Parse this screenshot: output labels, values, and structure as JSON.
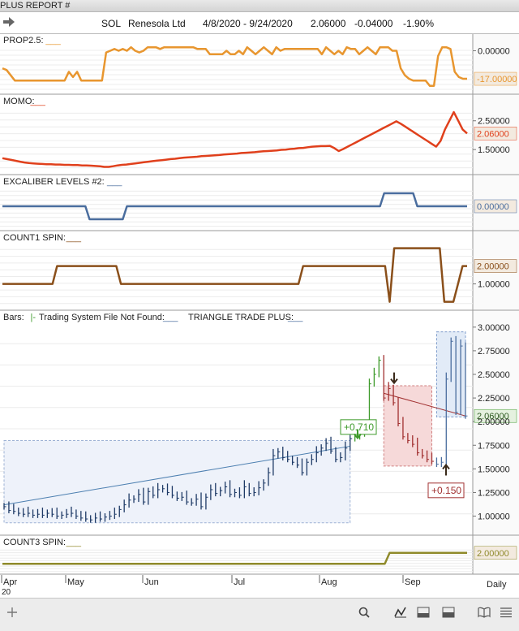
{
  "window": {
    "title": "PLUS REPORT #"
  },
  "header": {
    "symbol": "SOL",
    "name": "Renesola Ltd",
    "date_range": "4/8/2020 - 9/24/2020",
    "last": "2.06000",
    "change": "-0.04000",
    "change_pct": "-1.90%"
  },
  "colors": {
    "prop": "#e8962f",
    "momo": "#e0401c",
    "excal": "#4a6d9e",
    "count1": "#8a4f1a",
    "count3": "#8f8a2a",
    "up": "#3d9a2a",
    "down": "#a13030",
    "bars": "#1e3a66",
    "trend": "#4c7fb0"
  },
  "x_axis": {
    "months": [
      "Apr",
      "May",
      "Jun",
      "Jul",
      "Aug",
      "Sep"
    ],
    "year_label": "20",
    "period": "Daily"
  },
  "chart_data": [
    {
      "type": "line",
      "title": "PROP2.5:",
      "title_suffix": "___",
      "ticks": [
        "0.00000"
      ],
      "last_label": "-17.00000",
      "ylim": [
        -22,
        3
      ],
      "series": [
        {
          "values": [
            -10,
            -11,
            -14,
            -17,
            -17,
            -17,
            -17,
            -17,
            -17,
            -17,
            -17,
            -17,
            -17,
            -17,
            -17,
            -17,
            -12,
            -15,
            -12,
            -17,
            -17,
            -17,
            -17,
            -17,
            -17,
            -1,
            0,
            1,
            0,
            1,
            0,
            2,
            0,
            -1,
            0,
            2,
            2,
            2,
            1,
            2,
            2,
            2,
            2,
            2,
            2,
            2,
            2,
            1,
            1,
            1,
            -2,
            -2,
            -2,
            -2,
            0,
            -2,
            -2,
            0,
            -2,
            2,
            0,
            -2,
            0,
            2,
            0,
            -2,
            2,
            0,
            1,
            1,
            1,
            1,
            1,
            1,
            1,
            1,
            1,
            -2,
            2,
            0,
            -2,
            0,
            -2,
            2,
            1,
            1,
            -2,
            0,
            2,
            0,
            -2,
            2,
            2,
            2,
            0,
            0,
            -10,
            -14,
            -16,
            -17,
            -17,
            -17,
            -17,
            -20,
            -20,
            -3,
            2,
            2,
            1,
            -12,
            -15,
            -16,
            -16
          ]
        }
      ]
    },
    {
      "type": "line",
      "title": "MOMO:",
      "title_suffix": "___",
      "ticks": [
        "2.50000",
        "1.50000"
      ],
      "last_label": "2.06000",
      "ylim": [
        0.8,
        3.0
      ],
      "series": [
        {
          "values": [
            1.2,
            1.17,
            1.14,
            1.11,
            1.08,
            1.05,
            1.03,
            1.02,
            1.01,
            1.0,
            0.99,
            0.99,
            0.98,
            0.98,
            0.97,
            0.97,
            0.96,
            0.96,
            0.95,
            0.95,
            0.94,
            0.93,
            0.92,
            0.9,
            0.9,
            0.92,
            0.95,
            0.97,
            0.98,
            1.0,
            1.02,
            1.04,
            1.06,
            1.08,
            1.1,
            1.12,
            1.13,
            1.15,
            1.17,
            1.18,
            1.2,
            1.22,
            1.23,
            1.24,
            1.25,
            1.27,
            1.28,
            1.29,
            1.3,
            1.31,
            1.33,
            1.34,
            1.35,
            1.36,
            1.38,
            1.39,
            1.4,
            1.41,
            1.43,
            1.44,
            1.45,
            1.46,
            1.47,
            1.49,
            1.5,
            1.52,
            1.53,
            1.55,
            1.56,
            1.58,
            1.6,
            1.61,
            1.62,
            1.62,
            1.63,
            1.55,
            1.45,
            1.52,
            1.6,
            1.68,
            1.76,
            1.84,
            1.92,
            2.0,
            2.08,
            2.16,
            2.24,
            2.32,
            2.4,
            2.48,
            2.4,
            2.3,
            2.2,
            2.1,
            2.0,
            1.9,
            1.8,
            1.7,
            1.6,
            1.8,
            2.2,
            2.5,
            2.8,
            2.5,
            2.2,
            2.06
          ]
        }
      ]
    },
    {
      "type": "line",
      "title": "EXCALIBER LEVELS #2:",
      "title_suffix": "___",
      "ticks": [],
      "last_label": "0.00000",
      "ylim": [
        -1.5,
        1.5
      ],
      "series": [
        {
          "values": [
            0,
            0,
            0,
            0,
            0,
            0,
            0,
            0,
            0,
            0,
            0,
            0,
            0,
            0,
            0,
            0,
            0,
            0,
            0,
            0,
            0,
            -1,
            -1,
            -1,
            -1,
            -1,
            -1,
            -1,
            -1,
            -1,
            0,
            0,
            0,
            0,
            0,
            0,
            0,
            0,
            0,
            0,
            0,
            0,
            0,
            0,
            0,
            0,
            0,
            0,
            0,
            0,
            0,
            0,
            0,
            0,
            0,
            0,
            0,
            0,
            0,
            0,
            0,
            0,
            0,
            0,
            0,
            0,
            0,
            0,
            0,
            0,
            0,
            0,
            0,
            0,
            0,
            0,
            0,
            0,
            0,
            0,
            0,
            0,
            0,
            0,
            0,
            0,
            0,
            0,
            0,
            0,
            0,
            0,
            1,
            1,
            1,
            1,
            1,
            1,
            1,
            1,
            0,
            0,
            0,
            0,
            0,
            0,
            0,
            0,
            0,
            0,
            0,
            0,
            0
          ]
        }
      ]
    },
    {
      "type": "line",
      "title": "COUNT1 SPIN:",
      "title_suffix": "___",
      "ticks": [
        "1.00000"
      ],
      "last_label": "2.00000",
      "ylim": [
        -0.2,
        3.3
      ],
      "series": [
        {
          "values": [
            1,
            1,
            1,
            1,
            1,
            1,
            1,
            1,
            1,
            1,
            1,
            1,
            2,
            2,
            2,
            2,
            2,
            2,
            2,
            2,
            2,
            2,
            2,
            2,
            2,
            2,
            1,
            1,
            1,
            1,
            1,
            1,
            1,
            1,
            1,
            1,
            1,
            1,
            1,
            1,
            1,
            1,
            1,
            1,
            1,
            1,
            1,
            1,
            1,
            1,
            1,
            1,
            1,
            1,
            1,
            1,
            1,
            1,
            1,
            1,
            1,
            1,
            1,
            1,
            1,
            1,
            2,
            2,
            2,
            2,
            2,
            2,
            2,
            2,
            2,
            2,
            2,
            2,
            2,
            2,
            2,
            2,
            2,
            2,
            2,
            0,
            3,
            3,
            3,
            3,
            3,
            3,
            3,
            3,
            3,
            3,
            3,
            0,
            0,
            0,
            1,
            2,
            2
          ]
        }
      ]
    },
    {
      "type": "bar",
      "title": "Bars:",
      "title_suffix": "|-",
      "legend": [
        "Trading System File Not Found:",
        "TRIANGLE TRADE PLUS:"
      ],
      "ticks": [
        "3.00000",
        "2.75000",
        "2.50000",
        "2.25000",
        "2.00000",
        "1.75000",
        "1.50000",
        "1.25000",
        "1.00000"
      ],
      "last_label": "2.06000",
      "ylim": [
        0.85,
        3.05
      ],
      "annotations": [
        "+0.710",
        "+0.150"
      ],
      "closes": [
        1.1,
        1.06,
        1.05,
        1.03,
        1.02,
        1.03,
        1.01,
        1.02,
        1.01,
        1.03,
        1.02,
        1.0,
        1.01,
        1.02,
        1.03,
        1.0,
        0.98,
        0.97,
        0.96,
        0.98,
        0.97,
        0.99,
        1.0,
        1.02,
        1.07,
        1.12,
        1.17,
        1.18,
        1.23,
        1.15,
        1.26,
        1.22,
        1.28,
        1.29,
        1.25,
        1.22,
        1.19,
        1.2,
        1.15,
        1.14,
        1.18,
        1.1,
        1.2,
        1.28,
        1.24,
        1.27,
        1.31,
        1.23,
        1.25,
        1.22,
        1.31,
        1.24,
        1.25,
        1.3,
        1.35,
        1.46,
        1.64,
        1.68,
        1.62,
        1.6,
        1.57,
        1.54,
        1.46,
        1.57,
        1.6,
        1.67,
        1.72,
        1.77,
        1.69,
        1.6,
        1.62,
        1.72,
        1.82,
        1.84,
        1.87,
        1.98,
        2.4,
        2.5,
        2.65,
        2.25,
        2.35,
        2.2,
        1.98,
        1.84,
        1.8,
        1.76,
        1.67,
        1.64,
        1.6,
        1.58,
        1.55,
        1.57,
        2.45,
        2.85,
        2.1,
        2.8,
        2.06
      ],
      "trend": [
        1.12,
        1.74
      ],
      "trade_line": [
        2.3,
        2.06
      ]
    },
    {
      "type": "line",
      "title": "COUNT3 SPIN:",
      "title_suffix": "___",
      "ticks": [],
      "last_label": "2.00000",
      "ylim": [
        0.5,
        2.5
      ],
      "series": [
        {
          "values": [
            1,
            1,
            1,
            1,
            1,
            1,
            1,
            1,
            1,
            1,
            1,
            1,
            1,
            1,
            1,
            1,
            1,
            1,
            1,
            1,
            1,
            1,
            1,
            1,
            1,
            1,
            1,
            1,
            1,
            1,
            1,
            1,
            1,
            1,
            1,
            1,
            1,
            1,
            1,
            1,
            1,
            1,
            1,
            1,
            1,
            1,
            1,
            1,
            1,
            1,
            1,
            1,
            1,
            1,
            1,
            1,
            1,
            1,
            1,
            1,
            1,
            1,
            1,
            1,
            1,
            1,
            1,
            1,
            1,
            1,
            1,
            1,
            1,
            1,
            1,
            1,
            1,
            1,
            1,
            1,
            2,
            2,
            2,
            2,
            2,
            2,
            2,
            2,
            2,
            2,
            2,
            2,
            2,
            2,
            2,
            2,
            2
          ]
        }
      ]
    }
  ]
}
